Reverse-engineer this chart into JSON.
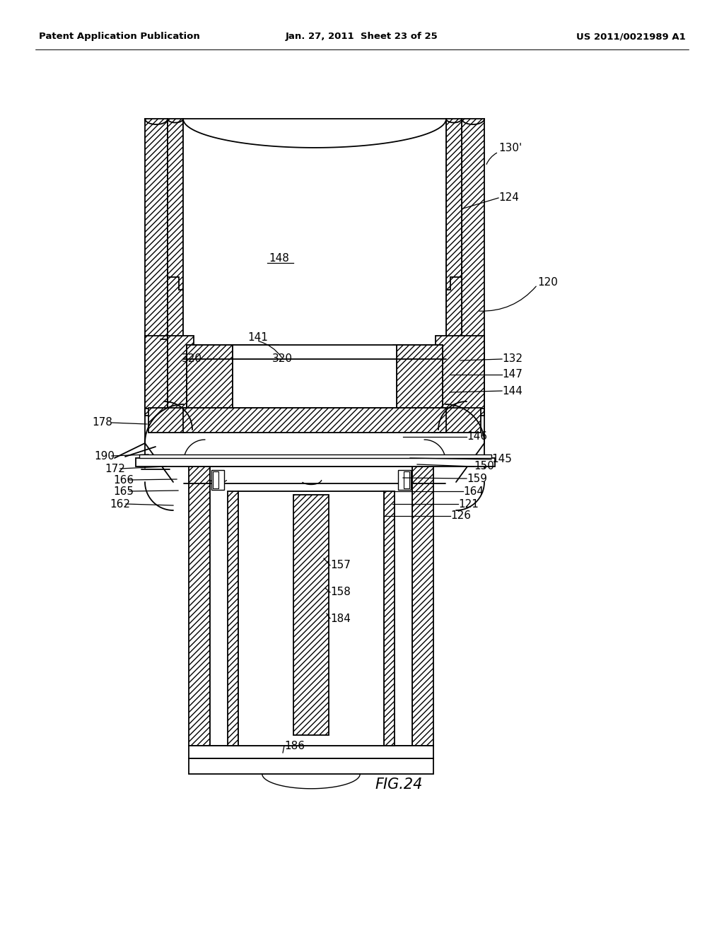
{
  "header_left": "Patent Application Publication",
  "header_center": "Jan. 27, 2011  Sheet 23 of 25",
  "header_right": "US 2011/0021989 A1",
  "figure_label": "FIG.24",
  "background_color": "#ffffff"
}
